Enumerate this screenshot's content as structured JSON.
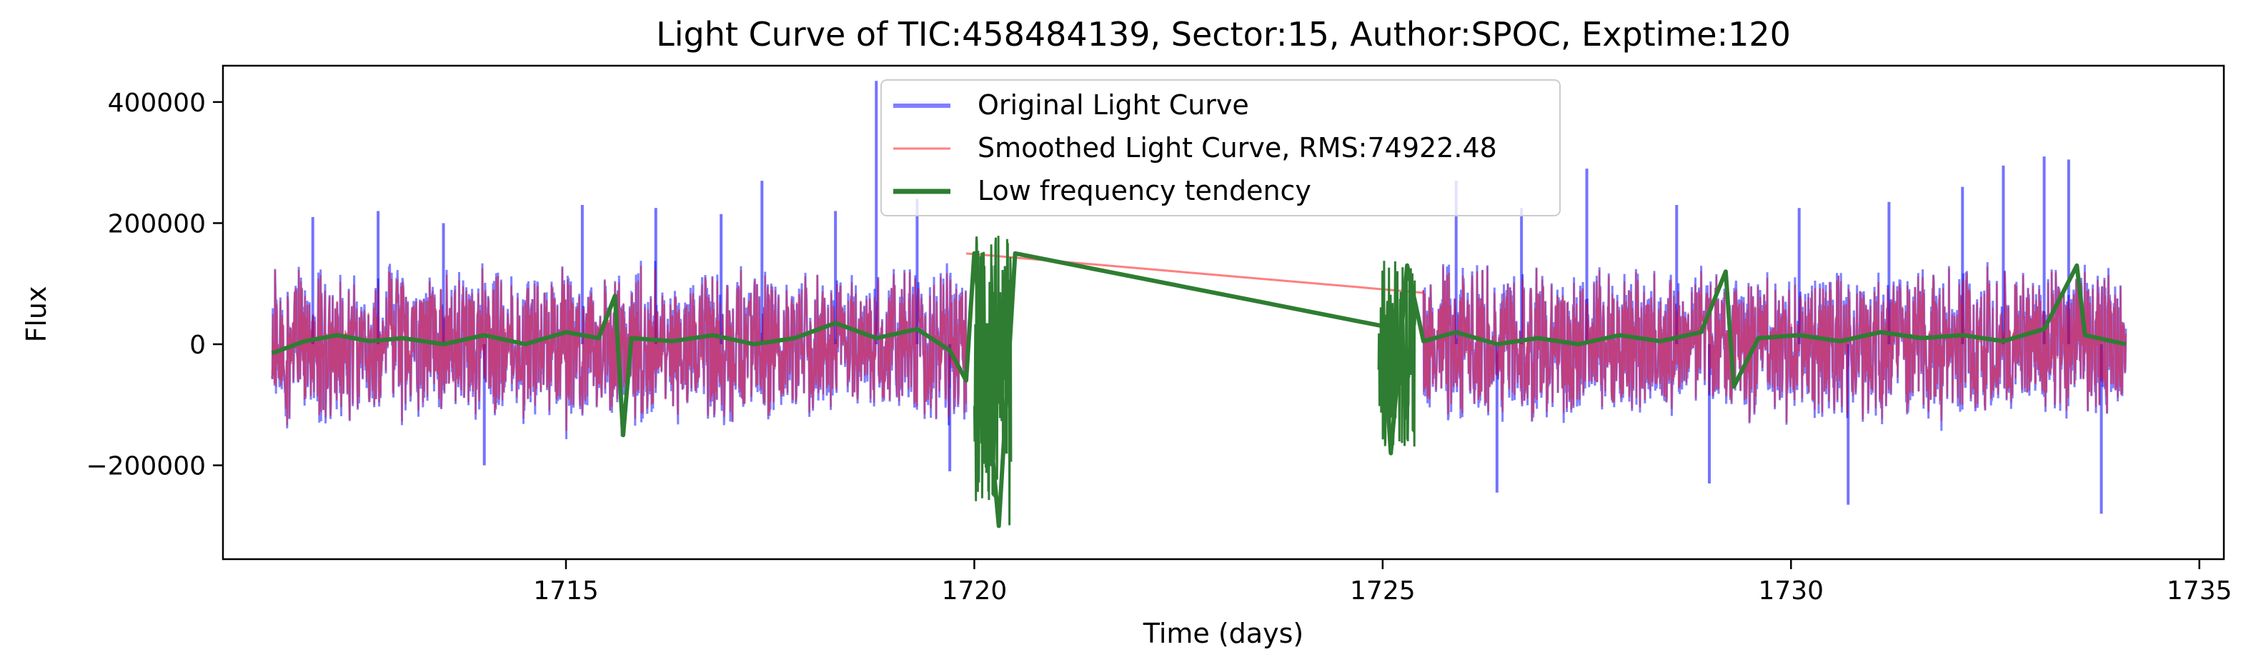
{
  "chart_data": {
    "type": "line",
    "title": "Light Curve of TIC:458484139, Sector:15, Author:SPOC, Exptime:120",
    "xlabel": "Time (days)",
    "ylabel": "Flux",
    "xlim": [
      1710.8,
      1735.3
    ],
    "ylim": [
      -355000,
      460000
    ],
    "x_ticks": [
      1715,
      1720,
      1725,
      1730,
      1735
    ],
    "x_tick_labels": [
      "1715",
      "1720",
      "1725",
      "1730",
      "1735"
    ],
    "y_ticks": [
      -200000,
      0,
      200000,
      400000
    ],
    "y_tick_labels": [
      "−200000",
      "0",
      "200000",
      "400000"
    ],
    "grid": false,
    "legend_position": "top-center",
    "segments": [
      {
        "start": 1711.4,
        "end": 1719.9
      },
      {
        "start": 1725.5,
        "end": 1734.1
      }
    ],
    "series": [
      {
        "name": "Original Light Curve",
        "color": "#0000ff",
        "opacity": 0.5,
        "typical_range": [
          -140000,
          140000
        ],
        "spikes": [
          {
            "x": 1711.9,
            "y": 210000
          },
          {
            "x": 1712.7,
            "y": 220000
          },
          {
            "x": 1713.5,
            "y": 200000
          },
          {
            "x": 1714.0,
            "y": -200000
          },
          {
            "x": 1715.2,
            "y": 230000
          },
          {
            "x": 1716.1,
            "y": 225000
          },
          {
            "x": 1716.9,
            "y": 215000
          },
          {
            "x": 1717.4,
            "y": 270000
          },
          {
            "x": 1718.3,
            "y": 220000
          },
          {
            "x": 1718.8,
            "y": 435000
          },
          {
            "x": 1719.3,
            "y": 240000
          },
          {
            "x": 1719.7,
            "y": -210000
          },
          {
            "x": 1725.9,
            "y": 270000
          },
          {
            "x": 1726.7,
            "y": 225000
          },
          {
            "x": 1727.5,
            "y": 290000
          },
          {
            "x": 1728.6,
            "y": 230000
          },
          {
            "x": 1730.1,
            "y": 225000
          },
          {
            "x": 1731.2,
            "y": 235000
          },
          {
            "x": 1732.1,
            "y": 260000
          },
          {
            "x": 1732.6,
            "y": 295000
          },
          {
            "x": 1733.1,
            "y": 310000
          },
          {
            "x": 1733.4,
            "y": 305000
          },
          {
            "x": 1733.8,
            "y": -280000
          },
          {
            "x": 1730.7,
            "y": -265000
          },
          {
            "x": 1726.4,
            "y": -245000
          },
          {
            "x": 1729.0,
            "y": -230000
          }
        ]
      },
      {
        "name": "Smoothed Light Curve, RMS:74922.48",
        "color": "#ff0000",
        "opacity": 0.5,
        "bridge": [
          [
            1719.9,
            150000
          ],
          [
            1725.5,
            85000
          ]
        ]
      },
      {
        "name": "Low frequency tendency",
        "color": "#2e7d32",
        "points": [
          [
            1711.4,
            -15000
          ],
          [
            1711.8,
            5000
          ],
          [
            1712.2,
            15000
          ],
          [
            1712.6,
            5000
          ],
          [
            1713.0,
            10000
          ],
          [
            1713.5,
            0
          ],
          [
            1714.0,
            15000
          ],
          [
            1714.5,
            0
          ],
          [
            1715.0,
            20000
          ],
          [
            1715.4,
            10000
          ],
          [
            1715.6,
            80000
          ],
          [
            1715.7,
            -150000
          ],
          [
            1715.8,
            10000
          ],
          [
            1716.3,
            5000
          ],
          [
            1716.8,
            15000
          ],
          [
            1717.3,
            0
          ],
          [
            1717.8,
            10000
          ],
          [
            1718.3,
            35000
          ],
          [
            1718.8,
            10000
          ],
          [
            1719.3,
            25000
          ],
          [
            1719.7,
            -10000
          ],
          [
            1719.9,
            -60000
          ],
          [
            1720.0,
            150000
          ],
          [
            1720.3,
            -300000
          ],
          [
            1720.5,
            150000
          ],
          [
            1725.0,
            30000
          ],
          [
            1725.1,
            -180000
          ],
          [
            1725.3,
            130000
          ],
          [
            1725.5,
            5000
          ],
          [
            1725.9,
            20000
          ],
          [
            1726.4,
            0
          ],
          [
            1726.9,
            10000
          ],
          [
            1727.4,
            0
          ],
          [
            1727.9,
            15000
          ],
          [
            1728.4,
            5000
          ],
          [
            1728.9,
            20000
          ],
          [
            1729.2,
            120000
          ],
          [
            1729.3,
            -70000
          ],
          [
            1729.6,
            10000
          ],
          [
            1730.1,
            15000
          ],
          [
            1730.6,
            5000
          ],
          [
            1731.1,
            20000
          ],
          [
            1731.6,
            10000
          ],
          [
            1732.1,
            15000
          ],
          [
            1732.6,
            5000
          ],
          [
            1733.1,
            25000
          ],
          [
            1733.5,
            130000
          ],
          [
            1733.6,
            15000
          ],
          [
            1734.1,
            0
          ]
        ]
      }
    ]
  }
}
